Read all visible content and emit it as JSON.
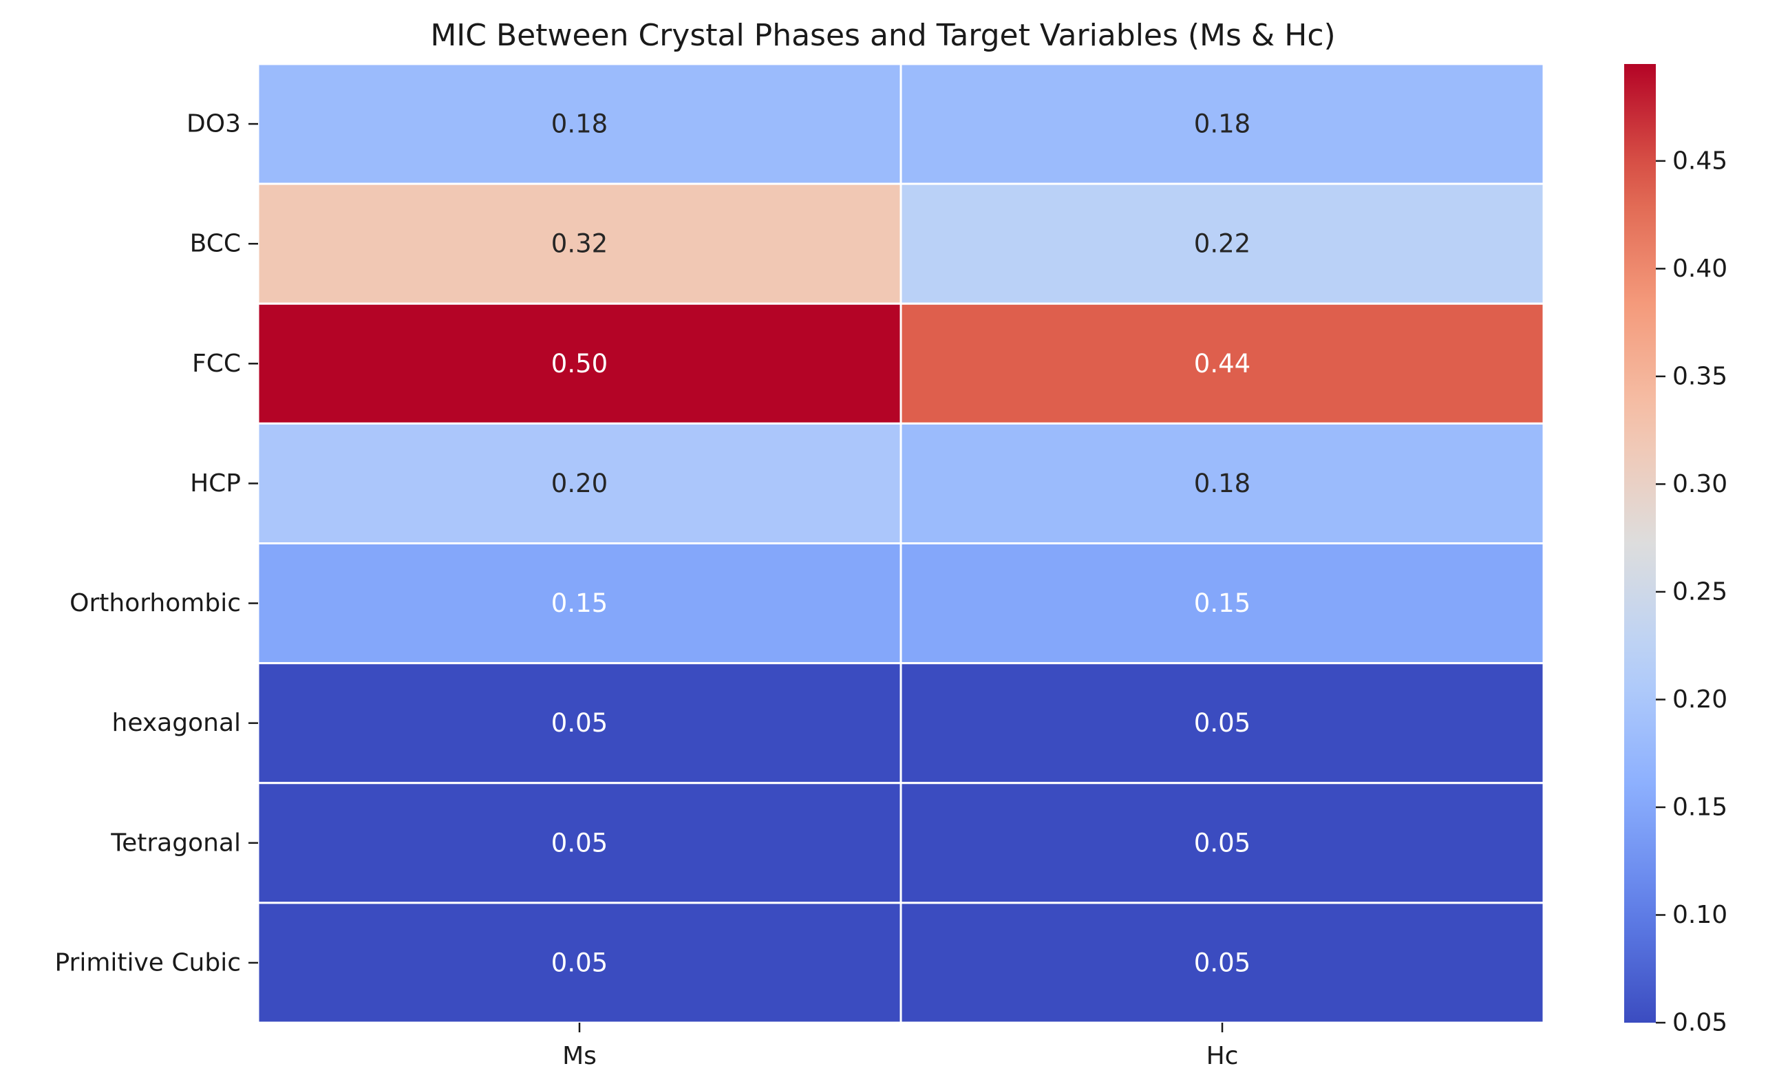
{
  "chart_data": {
    "type": "heatmap",
    "title": "MIC Between Crystal Phases and Target Variables (Ms & Hc)",
    "rows": [
      "DO3",
      "BCC",
      "FCC",
      "HCP",
      "Orthorhombic",
      "hexagonal",
      "Tetragonal",
      "Primitive Cubic"
    ],
    "columns": [
      "Ms",
      "Hc"
    ],
    "values": [
      [
        0.18,
        0.18
      ],
      [
        0.32,
        0.22
      ],
      [
        0.5,
        0.44
      ],
      [
        0.2,
        0.18
      ],
      [
        0.15,
        0.15
      ],
      [
        0.05,
        0.05
      ],
      [
        0.05,
        0.05
      ],
      [
        0.05,
        0.05
      ]
    ],
    "annotation_format": "2 decimals",
    "colormap": "coolwarm",
    "colorbar": {
      "range": [
        0.05,
        0.495
      ],
      "ticks": [
        0.05,
        0.1,
        0.15,
        0.2,
        0.25,
        0.3,
        0.35,
        0.4,
        0.45
      ],
      "tick_labels": [
        "0.05",
        "0.10",
        "0.15",
        "0.20",
        "0.25",
        "0.30",
        "0.35",
        "0.40",
        "0.45"
      ]
    },
    "cell_border_color": "#ffffff",
    "grid": false
  }
}
